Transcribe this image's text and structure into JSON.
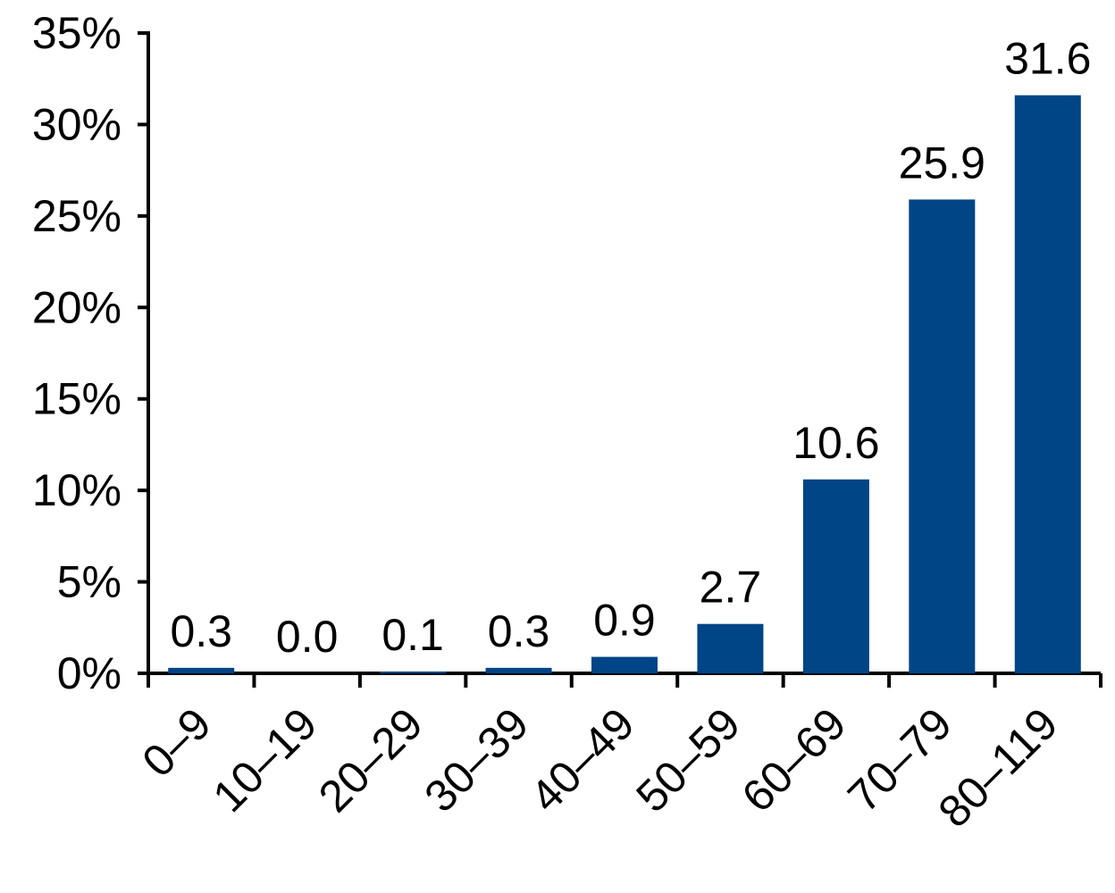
{
  "chart_data": {
    "type": "bar",
    "title": "",
    "xlabel": "",
    "ylabel": "",
    "categories": [
      "0–9",
      "10–19",
      "20–29",
      "30–39",
      "40–49",
      "50–59",
      "60–69",
      "70–79",
      "80–119"
    ],
    "values": [
      0.3,
      0.0,
      0.1,
      0.3,
      0.9,
      2.7,
      10.6,
      25.9,
      31.6
    ],
    "data_labels": [
      "0.3",
      "0.0",
      "0.1",
      "0.3",
      "0.9",
      "2.7",
      "10.6",
      "25.9",
      "31.6"
    ],
    "ylim": [
      0,
      35
    ],
    "y_ticks": [
      0,
      5,
      10,
      15,
      20,
      25,
      30,
      35
    ],
    "y_tick_labels": [
      "0%",
      "5%",
      "10%",
      "15%",
      "20%",
      "25%",
      "30%",
      "35%"
    ],
    "grid": false,
    "legend": "none",
    "bar_color": "#004586",
    "axis_color": "#000000"
  }
}
